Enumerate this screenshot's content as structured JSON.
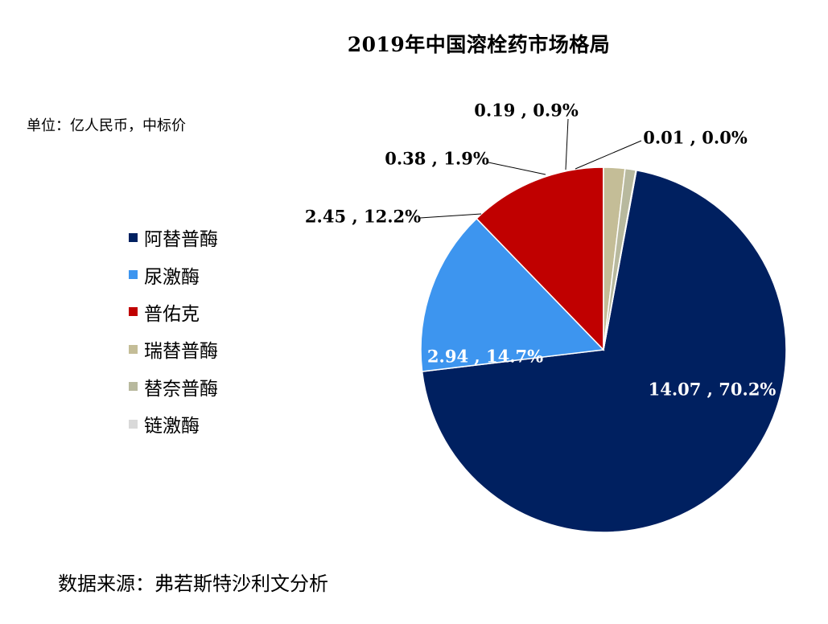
{
  "chart_data": {
    "type": "pie",
    "title": "2019年中国溶栓药市场格局",
    "unit_note": "单位：亿人民币，中标价",
    "source": "数据来源：弗若斯特沙利文分析",
    "legend_position": "left",
    "slices": [
      {
        "name": "阿替普酶",
        "value": 14.07,
        "percent": "70.2%",
        "label": "14.07 , 70.2%",
        "color": "#002060"
      },
      {
        "name": "尿激酶",
        "value": 2.94,
        "percent": "14.7%",
        "label": "2.94 , 14.7%",
        "color": "#3d95ef"
      },
      {
        "name": "普佑克",
        "value": 2.45,
        "percent": "12.2%",
        "label": "2.45 , 12.2%",
        "color": "#c00000"
      },
      {
        "name": "瑞替普酶",
        "value": 0.38,
        "percent": "1.9%",
        "label": "0.38 , 1.9%",
        "color": "#c4bd97"
      },
      {
        "name": "替奈普酶",
        "value": 0.19,
        "percent": "0.9%",
        "label": "0.19 , 0.9%",
        "color": "#b8b99e"
      },
      {
        "name": "链激酶",
        "value": 0.01,
        "percent": "0.0%",
        "label": "0.01 , 0.0%",
        "color": "#d9d9d9"
      }
    ]
  }
}
